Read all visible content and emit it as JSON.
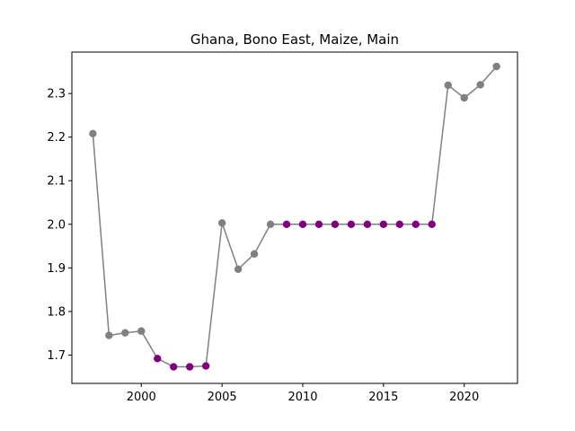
{
  "chart_data": {
    "type": "line",
    "title": "Ghana, Bono East, Maize, Main",
    "xlabel": "",
    "ylabel": "",
    "xlim": [
      1995.7,
      2023.3
    ],
    "ylim": [
      1.635,
      2.395
    ],
    "x_ticks": [
      2000,
      2005,
      2010,
      2015,
      2020
    ],
    "y_ticks": [
      1.7,
      1.8,
      1.9,
      2.0,
      2.1,
      2.2,
      2.3
    ],
    "x_tick_labels": [
      "2000",
      "2005",
      "2010",
      "2015",
      "2020"
    ],
    "y_tick_labels": [
      "1.7",
      "1.8",
      "1.9",
      "2.0",
      "2.1",
      "2.2",
      "2.3"
    ],
    "grid": false,
    "line_color": "#808080",
    "point_colors": {
      "normal": "#808080",
      "highlight": "#800080"
    },
    "series": [
      {
        "x": [
          1997,
          1998,
          1999,
          2000,
          2001,
          2002,
          2003,
          2004,
          2005,
          2006,
          2007,
          2008,
          2009,
          2010,
          2011,
          2012,
          2013,
          2014,
          2015,
          2016,
          2017,
          2018,
          2019,
          2020,
          2021,
          2022
        ],
        "values": [
          2.208,
          1.745,
          1.751,
          1.755,
          1.692,
          1.673,
          1.673,
          1.675,
          2.003,
          1.897,
          1.932,
          2.0,
          2.0,
          2.0,
          2.0,
          2.0,
          2.0,
          2.0,
          2.0,
          2.0,
          2.0,
          2.0,
          2.319,
          2.29,
          2.32,
          2.362
        ],
        "highlighted": [
          false,
          false,
          false,
          false,
          true,
          true,
          true,
          true,
          false,
          false,
          false,
          false,
          true,
          true,
          true,
          true,
          true,
          true,
          true,
          true,
          true,
          true,
          false,
          false,
          false,
          false
        ]
      }
    ]
  }
}
